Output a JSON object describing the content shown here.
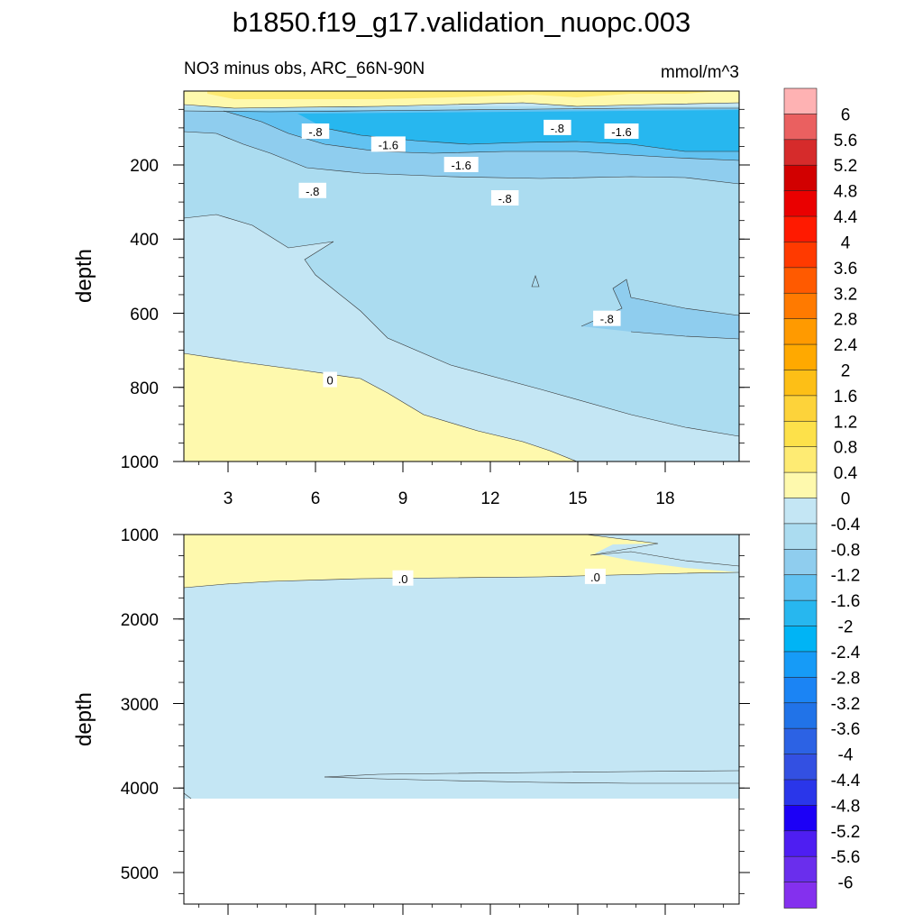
{
  "title": "b1850.f19_g17.validation_nuopc.003",
  "subtitle_left": "NO3 minus obs, ARC_66N-90N",
  "subtitle_right": "mmol/m^3",
  "colors": {
    "c_n0": "#c4e6f4",
    "c_n04": "#abdcf0",
    "c_n08": "#8fcdee",
    "c_n12": "#62c2f1",
    "c_n16": "#27b7ef",
    "c_p0": "#fef9ad",
    "c_p04": "#feeb73",
    "stroke": "#333333"
  },
  "chart_data": [
    {
      "type": "contour",
      "name": "upper-panel",
      "xlabel": "",
      "ylabel": "depth",
      "xlim": [
        1,
        20
      ],
      "ylim": [
        0,
        1000
      ],
      "y_inverted": true,
      "x_ticks": [
        "3",
        "6",
        "9",
        "12",
        "15",
        "18"
      ],
      "y_ticks": [
        "200",
        "400",
        "600",
        "800",
        "1000"
      ],
      "contour_labels": [
        {
          "text": "-.8",
          "x": 6.0,
          "y": 110
        },
        {
          "text": "-1.6",
          "x": 8.5,
          "y": 145
        },
        {
          "text": "-1.6",
          "x": 11.0,
          "y": 200
        },
        {
          "text": "-.8",
          "x": 14.3,
          "y": 100
        },
        {
          "text": "-1.6",
          "x": 16.5,
          "y": 110
        },
        {
          "text": "-.8",
          "x": 5.9,
          "y": 270
        },
        {
          "text": "-.8",
          "x": 12.5,
          "y": 290
        },
        {
          "text": "-.8",
          "x": 16.0,
          "y": 615
        },
        {
          "text": "0",
          "x": 6.5,
          "y": 780
        }
      ]
    },
    {
      "type": "contour",
      "name": "lower-panel",
      "xlabel": "",
      "ylabel": "depth",
      "xlim": [
        1,
        20
      ],
      "ylim": [
        1000,
        5400
      ],
      "y_inverted": true,
      "x_ticks": [
        "3",
        "6",
        "9",
        "12",
        "15",
        "18"
      ],
      "y_ticks": [
        "1000",
        "2000",
        "3000",
        "4000",
        "5000"
      ],
      "contour_labels": [
        {
          "text": ".0",
          "x": 9.0,
          "y": 1520
        },
        {
          "text": ".0",
          "x": 15.6,
          "y": 1500
        }
      ]
    }
  ],
  "colorbar": {
    "labels": [
      "6",
      "5.6",
      "5.2",
      "4.8",
      "4.4",
      "4",
      "3.6",
      "3.2",
      "2.8",
      "2.4",
      "2",
      "1.6",
      "1.2",
      "0.8",
      "0.4",
      "0",
      "-0.4",
      "-0.8",
      "-1.2",
      "-1.6",
      "-2",
      "-2.4",
      "-2.8",
      "-3.2",
      "-3.6",
      "-4",
      "-4.4",
      "-4.8",
      "-5.2",
      "-5.6",
      "-6"
    ],
    "colors": [
      "#feb2b3",
      "#ea6060",
      "#d62b2b",
      "#d20000",
      "#ea0000",
      "#ff1a00",
      "#ff3a00",
      "#ff5a00",
      "#ff7a00",
      "#ff9a00",
      "#ffa900",
      "#fdbf16",
      "#fdd33a",
      "#fde14a",
      "#feeb73",
      "#fef9ad",
      "#c4e6f4",
      "#abdcf0",
      "#8fcdee",
      "#62c2f1",
      "#27b7ef",
      "#00b4f5",
      "#169bf7",
      "#1b84f4",
      "#2173e8",
      "#2c62e4",
      "#3350e2",
      "#2a36ea",
      "#1c00f6",
      "#4e1ef2",
      "#6a2eed",
      "#8430ee"
    ]
  }
}
